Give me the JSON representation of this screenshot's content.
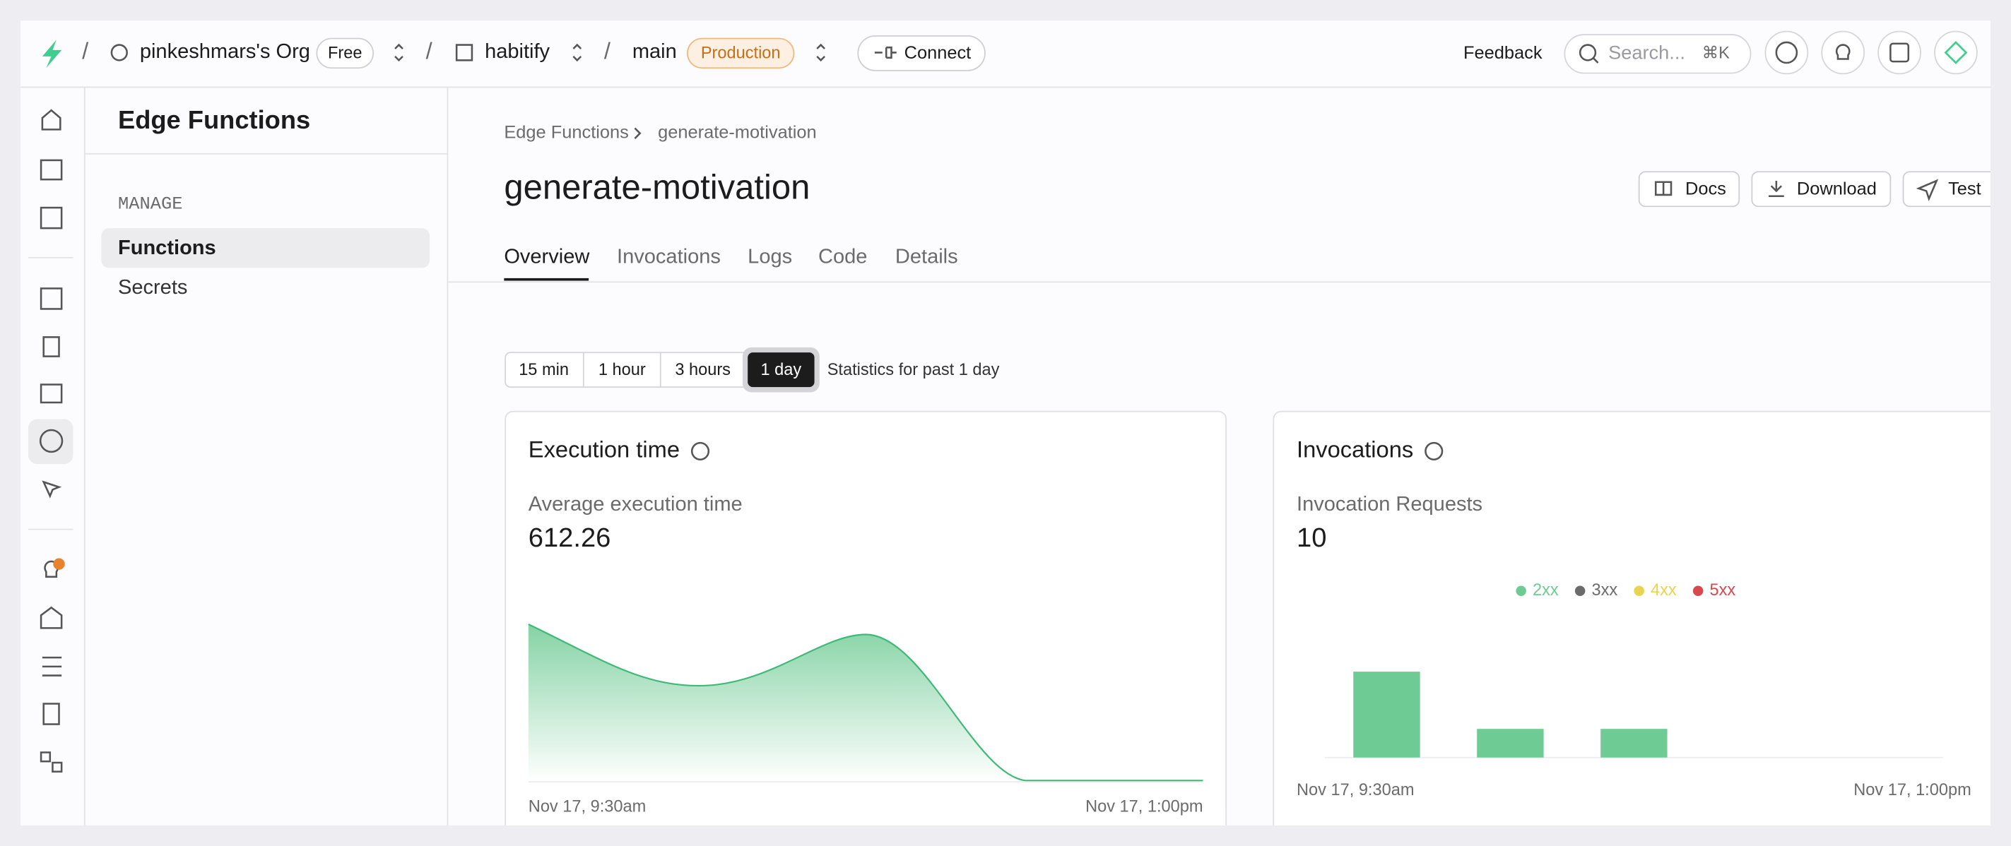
{
  "topbar": {
    "org": "pinkeshmars's Org",
    "plan": "Free",
    "project": "habitify",
    "branch": "main",
    "env": "Production",
    "connect": "Connect",
    "feedback": "Feedback",
    "search": "Search...",
    "shortcut": "⌘K"
  },
  "sidebar": {
    "title": "Edge Functions",
    "section": "MANAGE",
    "items": [
      "Functions",
      "Secrets"
    ]
  },
  "breadcrumb": [
    "Edge Functions",
    "generate-motivation"
  ],
  "page_title": "generate-motivation",
  "actions": [
    "Docs",
    "Download",
    "Test"
  ],
  "tabs": [
    "Overview",
    "Invocations",
    "Logs",
    "Code",
    "Details"
  ],
  "ranges": [
    "15 min",
    "1 hour",
    "3 hours",
    "1 day"
  ],
  "range_note": "Statistics for past 1 day",
  "cards": [
    {
      "title": "Execution time",
      "metric_label": "Average execution time",
      "metric": 612.26,
      "x_start": "Nov 17, 9:30am",
      "x_end": "Nov 17, 1:00pm"
    },
    {
      "title": "Invocations",
      "metric_label": "Invocation Requests",
      "metric": 10,
      "x_start": "Nov 17, 9:30am",
      "x_end": "Nov 17, 1:00pm",
      "chart": {
        "type": "bar",
        "categories": [
          null,
          null,
          null,
          null,
          null
        ],
        "series": [
          {
            "name": "2xx",
            "color": "#6fcb94",
            "values": [
              6,
              2,
              2,
              0,
              0
            ]
          },
          {
            "name": "3xx",
            "color": "#6b6b6b",
            "values": [
              0,
              0,
              0,
              0,
              0
            ]
          },
          {
            "name": "4xx",
            "color": "#e8d44d",
            "values": [
              0,
              0,
              0,
              0,
              0
            ]
          },
          {
            "name": "5xx",
            "color": "#d9484f",
            "values": [
              0,
              0,
              0,
              0,
              0
            ]
          }
        ]
      }
    }
  ]
}
